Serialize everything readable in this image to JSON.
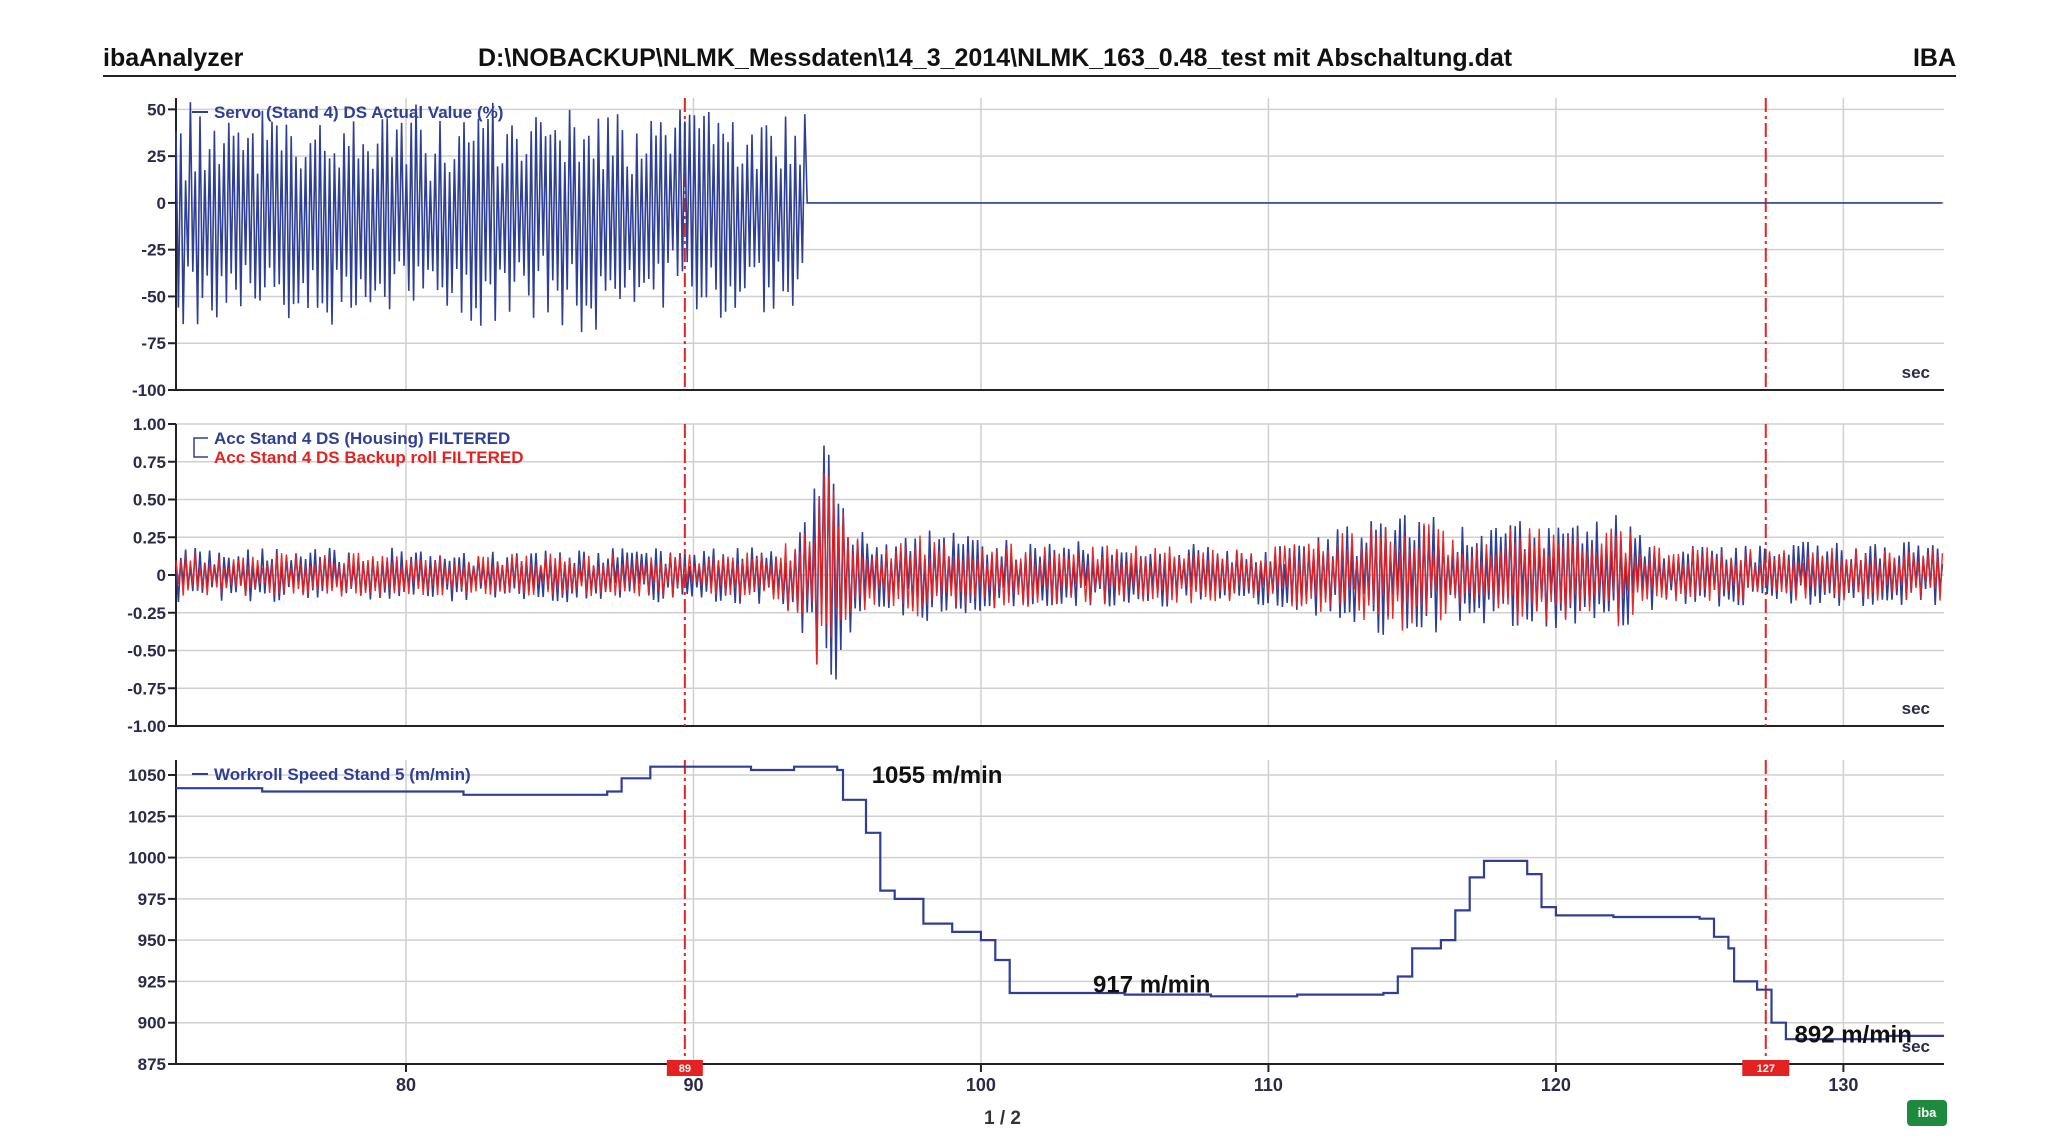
{
  "header": {
    "app_name": "ibaAnalyzer",
    "file_path": "D:\\NOBACKUP\\NLMK_Messdaten\\14_3_2014\\NLMK_163_0.48_test mit Abschaltung.dat",
    "brand": "IBA"
  },
  "page_indicator": "1 / 2",
  "logo_text": "iba",
  "colors": {
    "blue": "#2e3f96",
    "red": "#e52222",
    "grid": "#d0d0d0",
    "marker": "#e52222"
  },
  "chart_data": {
    "type": "line",
    "xlim": [
      72,
      133.5
    ],
    "x_ticks": [
      80,
      90,
      100,
      110,
      120,
      130
    ],
    "x_unit": "sec",
    "markers": [
      {
        "x": 89.7,
        "label": "89"
      },
      {
        "x": 127.3,
        "label": "127"
      }
    ],
    "panels": [
      {
        "id": "servo",
        "ylim": [
          -100,
          55
        ],
        "y_ticks": [
          50,
          25,
          0,
          -25,
          -50,
          -75,
          -100
        ],
        "y_tick_labels": [
          "50",
          "25",
          "0",
          "-25",
          "-50",
          "-75",
          "-100"
        ],
        "x_unit_label": "sec",
        "series": [
          {
            "name": "Servo (Stand 4) DS Actual Value (%)",
            "color": "#2e3f96",
            "kind": "oscillation",
            "segments": [
              {
                "x0": 72,
                "x1": 93.9,
                "amp": 55
              },
              {
                "x0": 93.9,
                "x1": 133.5,
                "amp": 0
              }
            ]
          }
        ]
      },
      {
        "id": "acc",
        "ylim": [
          -1.0,
          1.0
        ],
        "y_ticks": [
          1.0,
          0.75,
          0.5,
          0.25,
          0,
          -0.25,
          -0.5,
          -0.75,
          -1.0
        ],
        "y_tick_labels": [
          "1.00",
          "0.75",
          "0.50",
          "0.25",
          "0",
          "-0.25",
          "-0.50",
          "-0.75",
          "-1.00"
        ],
        "x_unit_label": "sec",
        "series": [
          {
            "name": "Acc Stand 4 DS (Housing) FILTERED",
            "color": "#2e3f96",
            "kind": "oscillation",
            "envelope": [
              [
                72,
                0.18
              ],
              [
                90,
                0.18
              ],
              [
                93,
                0.2
              ],
              [
                94,
                0.45
              ],
              [
                94.6,
                0.95
              ],
              [
                95.2,
                0.55
              ],
              [
                96,
                0.25
              ],
              [
                98,
                0.32
              ],
              [
                100,
                0.25
              ],
              [
                104,
                0.22
              ],
              [
                110,
                0.2
              ],
              [
                112,
                0.3
              ],
              [
                114,
                0.4
              ],
              [
                115,
                0.45
              ],
              [
                117,
                0.3
              ],
              [
                119,
                0.4
              ],
              [
                121,
                0.35
              ],
              [
                122,
                0.45
              ],
              [
                123,
                0.25
              ],
              [
                126,
                0.22
              ],
              [
                133.5,
                0.22
              ]
            ]
          },
          {
            "name": "Acc Stand 4 DS Backup roll FILTERED",
            "color": "#e52222",
            "kind": "oscillation",
            "envelope": [
              [
                72,
                0.15
              ],
              [
                90,
                0.15
              ],
              [
                93,
                0.18
              ],
              [
                94,
                0.4
              ],
              [
                94.6,
                0.9
              ],
              [
                95.2,
                0.5
              ],
              [
                96,
                0.22
              ],
              [
                98,
                0.28
              ],
              [
                100,
                0.22
              ],
              [
                104,
                0.2
              ],
              [
                110,
                0.18
              ],
              [
                112,
                0.25
              ],
              [
                114,
                0.35
              ],
              [
                115,
                0.4
              ],
              [
                117,
                0.25
              ],
              [
                119,
                0.35
              ],
              [
                121,
                0.3
              ],
              [
                122,
                0.4
              ],
              [
                123,
                0.2
              ],
              [
                126,
                0.18
              ],
              [
                133.5,
                0.18
              ]
            ]
          }
        ]
      },
      {
        "id": "speed",
        "ylim": [
          875,
          1062
        ],
        "y_ticks": [
          1050,
          1025,
          1000,
          975,
          950,
          925,
          900,
          875
        ],
        "y_tick_labels": [
          "1050",
          "1025",
          "1000",
          "975",
          "950",
          "925",
          "900",
          "875"
        ],
        "x_unit_label": "sec",
        "series": [
          {
            "name": "Workroll Speed Stand 5 (m/min)",
            "color": "#2e3f96",
            "kind": "step",
            "points": [
              [
                72,
                1042
              ],
              [
                75,
                1040
              ],
              [
                80,
                1040
              ],
              [
                82,
                1038
              ],
              [
                87,
                1040
              ],
              [
                87.5,
                1048
              ],
              [
                88.5,
                1055
              ],
              [
                92,
                1053
              ],
              [
                93.5,
                1055
              ],
              [
                95,
                1053
              ],
              [
                95.2,
                1035
              ],
              [
                96,
                1015
              ],
              [
                96.5,
                980
              ],
              [
                97,
                975
              ],
              [
                98,
                960
              ],
              [
                99,
                955
              ],
              [
                100,
                950
              ],
              [
                100.5,
                938
              ],
              [
                101,
                918
              ],
              [
                105,
                917
              ],
              [
                108,
                916
              ],
              [
                111,
                917
              ],
              [
                114,
                918
              ],
              [
                114.5,
                928
              ],
              [
                115,
                945
              ],
              [
                116,
                950
              ],
              [
                116.5,
                968
              ],
              [
                117,
                988
              ],
              [
                117.5,
                998
              ],
              [
                118.5,
                998
              ],
              [
                119,
                990
              ],
              [
                119.5,
                970
              ],
              [
                120,
                965
              ],
              [
                122,
                964
              ],
              [
                125,
                963
              ],
              [
                125.5,
                952
              ],
              [
                126,
                945
              ],
              [
                126.2,
                925
              ],
              [
                127,
                920
              ],
              [
                127.5,
                900
              ],
              [
                128,
                890
              ],
              [
                131,
                890
              ],
              [
                131.5,
                892
              ],
              [
                133.5,
                892
              ]
            ]
          }
        ],
        "annotations": [
          {
            "text": "1055 m/min",
            "x": 96.2,
            "y": 1050
          },
          {
            "text": "917 m/min",
            "x": 103.9,
            "y": 923
          },
          {
            "text": "892 m/min",
            "x": 128.3,
            "y": 893
          }
        ]
      }
    ]
  }
}
